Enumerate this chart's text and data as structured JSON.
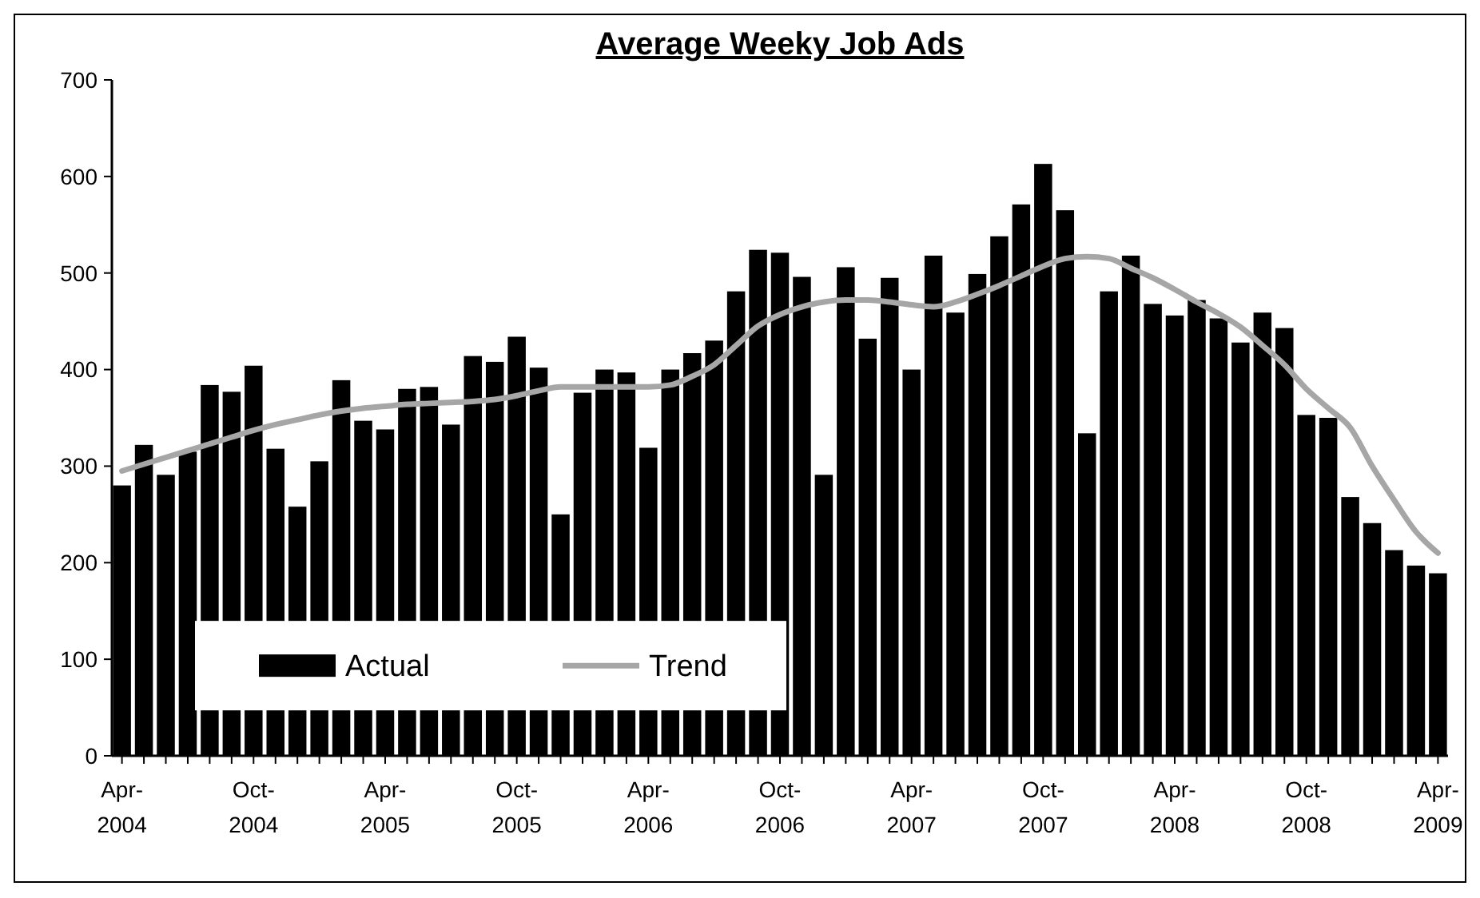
{
  "chart_data": {
    "type": "bar",
    "title": "Average Weeky Job Ads",
    "categories": [
      "Apr-2004",
      null,
      null,
      null,
      null,
      null,
      "Oct-2004",
      null,
      null,
      null,
      null,
      null,
      "Apr-2005",
      null,
      null,
      null,
      null,
      null,
      "Oct-2005",
      null,
      null,
      null,
      null,
      null,
      "Apr-2006",
      null,
      null,
      null,
      null,
      null,
      "Oct-2006",
      null,
      null,
      null,
      null,
      null,
      "Apr-2007",
      null,
      null,
      null,
      null,
      null,
      "Oct-2007",
      null,
      null,
      null,
      null,
      null,
      "Apr-2008",
      null,
      null,
      null,
      null,
      null,
      "Oct-2008",
      null,
      null,
      null,
      null,
      null,
      "Apr-2009"
    ],
    "series": [
      {
        "name": "Actual",
        "color": "#000000",
        "values": [
          280,
          322,
          291,
          315,
          384,
          377,
          404,
          318,
          258,
          305,
          389,
          347,
          338,
          380,
          382,
          343,
          414,
          408,
          434,
          402,
          250,
          376,
          400,
          397,
          319,
          400,
          417,
          430,
          481,
          524,
          521,
          496,
          291,
          506,
          432,
          495,
          400,
          518,
          459,
          499,
          538,
          571,
          613,
          565,
          334,
          481,
          518,
          468,
          456,
          472,
          453,
          428,
          459,
          443,
          353,
          350,
          268,
          241,
          213,
          197,
          189
        ]
      },
      {
        "name": "Trend",
        "type": "line",
        "color": "#a6a6a6",
        "values": [
          295,
          302,
          309,
          316,
          323,
          330,
          337,
          343,
          348,
          353,
          357,
          360,
          362,
          364,
          365,
          366,
          367,
          369,
          373,
          378,
          382,
          382,
          382,
          382,
          382,
          384,
          393,
          405,
          425,
          445,
          457,
          465,
          470,
          472,
          472,
          470,
          467,
          465,
          470,
          478,
          487,
          497,
          507,
          515,
          517,
          515,
          505,
          495,
          483,
          470,
          458,
          444,
          425,
          405,
          380,
          360,
          340,
          300,
          265,
          232,
          210
        ]
      }
    ],
    "ylim": [
      0,
      700
    ],
    "yticks": [
      0,
      100,
      200,
      300,
      400,
      500,
      600,
      700
    ],
    "grid": false,
    "legend": "bottom left"
  }
}
